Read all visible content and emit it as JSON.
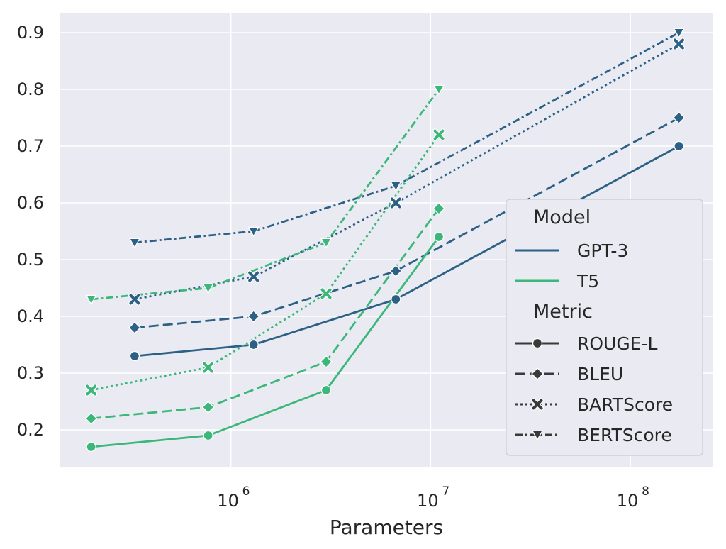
{
  "chart_data": {
    "type": "line",
    "xlabel": "Parameters",
    "ylabel": "",
    "xscale": "log",
    "xlim": [
      140000,
      260000000
    ],
    "ylim": [
      0.135,
      0.935
    ],
    "grid": true,
    "legend_position": "lower-right",
    "x_ticks": [
      {
        "value": 1000000,
        "base": "10",
        "exp": "6"
      },
      {
        "value": 10000000,
        "base": "10",
        "exp": "7"
      },
      {
        "value": 100000000,
        "base": "10",
        "exp": "8"
      }
    ],
    "y_ticks": [
      0.2,
      0.3,
      0.4,
      0.5,
      0.6,
      0.7,
      0.8,
      0.9
    ],
    "y_tick_labels": [
      "0.2",
      "0.3",
      "0.4",
      "0.5",
      "0.6",
      "0.7",
      "0.8",
      "0.9"
    ],
    "models": [
      {
        "name": "GPT-3",
        "color": "#2c6185"
      },
      {
        "name": "T5",
        "color": "#3bb77a"
      }
    ],
    "metrics": [
      {
        "name": "ROUGE-L",
        "marker": "circle",
        "dash": ""
      },
      {
        "name": "BLEU",
        "marker": "diamond",
        "dash": "14 6"
      },
      {
        "name": "BARTScore",
        "marker": "x",
        "dash": "3 4"
      },
      {
        "name": "BERTScore",
        "marker": "triangle-down",
        "dash": "10 4 3 4"
      }
    ],
    "series": [
      {
        "model": "GPT-3",
        "metric": "ROUGE-L",
        "x": [
          330000,
          1300000,
          6700000,
          175000000
        ],
        "y": [
          0.33,
          0.35,
          0.43,
          0.7
        ]
      },
      {
        "model": "GPT-3",
        "metric": "BLEU",
        "x": [
          330000,
          1300000,
          6700000,
          175000000
        ],
        "y": [
          0.38,
          0.4,
          0.48,
          0.75
        ]
      },
      {
        "model": "GPT-3",
        "metric": "BARTScore",
        "x": [
          330000,
          1300000,
          6700000,
          175000000
        ],
        "y": [
          0.43,
          0.47,
          0.6,
          0.88
        ]
      },
      {
        "model": "GPT-3",
        "metric": "BERTScore",
        "x": [
          330000,
          1300000,
          6700000,
          175000000
        ],
        "y": [
          0.53,
          0.55,
          0.63,
          0.9
        ]
      },
      {
        "model": "T5",
        "metric": "ROUGE-L",
        "x": [
          200000,
          770000,
          3000000,
          11000000
        ],
        "y": [
          0.17,
          0.19,
          0.27,
          0.54
        ]
      },
      {
        "model": "T5",
        "metric": "BLEU",
        "x": [
          200000,
          770000,
          3000000,
          11000000
        ],
        "y": [
          0.22,
          0.24,
          0.32,
          0.59
        ]
      },
      {
        "model": "T5",
        "metric": "BARTScore",
        "x": [
          200000,
          770000,
          3000000,
          11000000
        ],
        "y": [
          0.27,
          0.31,
          0.44,
          0.72
        ]
      },
      {
        "model": "T5",
        "metric": "BERTScore",
        "x": [
          200000,
          770000,
          3000000,
          11000000
        ],
        "y": [
          0.43,
          0.45,
          0.53,
          0.8
        ]
      }
    ],
    "legend": {
      "model_title": "Model",
      "metric_title": "Metric",
      "metric_line_color": "#3a3a3a"
    },
    "colors": {
      "plot_background": "#eaeaf2",
      "grid": "#ffffff",
      "legend_background": "#eaeaf2",
      "legend_border": "#cccccc"
    }
  }
}
